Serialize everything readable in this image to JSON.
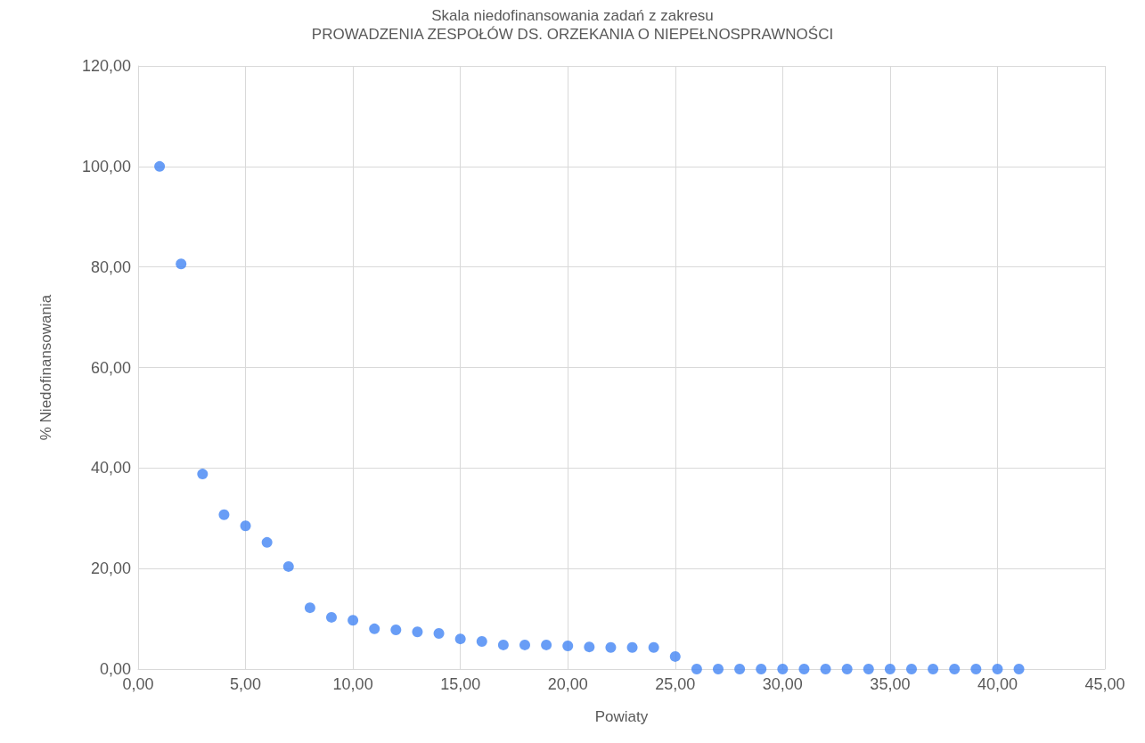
{
  "chart_data": {
    "type": "scatter",
    "title": "Skala niedofinansowania zadań z zakresu",
    "subtitle": "PROWADZENIA ZESPOŁÓW DS. ORZEKANIA O NIEPEŁNOSPRAWNOŚCI",
    "xlabel": "Powiaty",
    "ylabel": "% Niedofinansowania",
    "x": [
      1,
      2,
      3,
      4,
      5,
      6,
      7,
      8,
      9,
      10,
      11,
      12,
      13,
      14,
      15,
      16,
      17,
      18,
      19,
      20,
      21,
      22,
      23,
      24,
      25,
      26,
      27,
      28,
      29,
      30,
      31,
      32,
      33,
      34,
      35,
      36,
      37,
      38,
      39,
      40,
      41
    ],
    "series": [
      {
        "color": "#4285f4",
        "values": [
          100,
          80.6,
          38.8,
          30.7,
          28.5,
          25.2,
          20.4,
          12.2,
          10.3,
          9.7,
          8.0,
          7.8,
          7.4,
          7.1,
          6.0,
          5.5,
          4.8,
          4.8,
          4.8,
          4.6,
          4.4,
          4.3,
          4.3,
          4.3,
          2.5,
          0,
          0,
          0,
          0,
          0,
          0,
          0,
          0,
          0,
          0,
          0,
          0,
          0,
          0,
          0,
          0
        ]
      }
    ],
    "xlim": [
      0,
      45
    ],
    "xticks": [
      {
        "value": 0,
        "label": "0,00"
      },
      {
        "value": 5,
        "label": "5,00"
      },
      {
        "value": 10,
        "label": "10,00"
      },
      {
        "value": 15,
        "label": "15,00"
      },
      {
        "value": 20,
        "label": "20,00"
      },
      {
        "value": 25,
        "label": "25,00"
      },
      {
        "value": 30,
        "label": "30,00"
      },
      {
        "value": 35,
        "label": "35,00"
      },
      {
        "value": 40,
        "label": "40,00"
      },
      {
        "value": 45,
        "label": "45,00"
      }
    ],
    "ylim": [
      0,
      120
    ],
    "yticks": [
      {
        "value": 0,
        "label": "0,00"
      },
      {
        "value": 20,
        "label": "20,00"
      },
      {
        "value": 40,
        "label": "40,00"
      },
      {
        "value": 60,
        "label": "60,00"
      },
      {
        "value": 80,
        "label": "80,00"
      },
      {
        "value": 100,
        "label": "100,00"
      },
      {
        "value": 120,
        "label": "120,00"
      }
    ],
    "grid": true,
    "marker": "circle"
  }
}
